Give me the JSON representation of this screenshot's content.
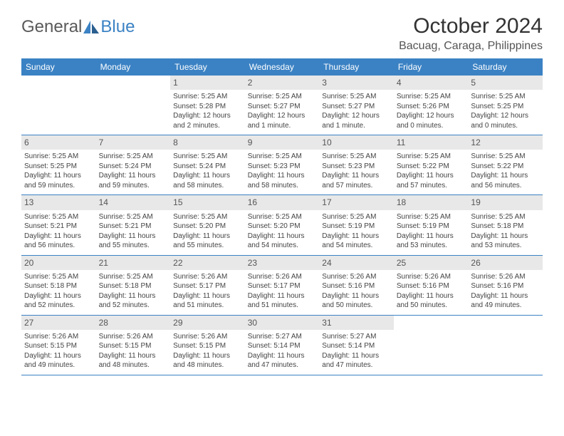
{
  "logo": {
    "part1": "General",
    "part2": "Blue"
  },
  "title": "October 2024",
  "location": "Bacuag, Caraga, Philippines",
  "colors": {
    "header_bg": "#3b82c4",
    "header_fg": "#ffffff",
    "daynum_bg": "#e8e8e8",
    "border": "#3b82c4",
    "text": "#444444",
    "logo_gray": "#5a5a5a",
    "logo_blue": "#3b82c4"
  },
  "dayNames": [
    "Sunday",
    "Monday",
    "Tuesday",
    "Wednesday",
    "Thursday",
    "Friday",
    "Saturday"
  ],
  "startOffset": 2,
  "days": [
    {
      "n": 1,
      "sr": "5:25 AM",
      "ss": "5:28 PM",
      "dl": "12 hours and 2 minutes."
    },
    {
      "n": 2,
      "sr": "5:25 AM",
      "ss": "5:27 PM",
      "dl": "12 hours and 1 minute."
    },
    {
      "n": 3,
      "sr": "5:25 AM",
      "ss": "5:27 PM",
      "dl": "12 hours and 1 minute."
    },
    {
      "n": 4,
      "sr": "5:25 AM",
      "ss": "5:26 PM",
      "dl": "12 hours and 0 minutes."
    },
    {
      "n": 5,
      "sr": "5:25 AM",
      "ss": "5:25 PM",
      "dl": "12 hours and 0 minutes."
    },
    {
      "n": 6,
      "sr": "5:25 AM",
      "ss": "5:25 PM",
      "dl": "11 hours and 59 minutes."
    },
    {
      "n": 7,
      "sr": "5:25 AM",
      "ss": "5:24 PM",
      "dl": "11 hours and 59 minutes."
    },
    {
      "n": 8,
      "sr": "5:25 AM",
      "ss": "5:24 PM",
      "dl": "11 hours and 58 minutes."
    },
    {
      "n": 9,
      "sr": "5:25 AM",
      "ss": "5:23 PM",
      "dl": "11 hours and 58 minutes."
    },
    {
      "n": 10,
      "sr": "5:25 AM",
      "ss": "5:23 PM",
      "dl": "11 hours and 57 minutes."
    },
    {
      "n": 11,
      "sr": "5:25 AM",
      "ss": "5:22 PM",
      "dl": "11 hours and 57 minutes."
    },
    {
      "n": 12,
      "sr": "5:25 AM",
      "ss": "5:22 PM",
      "dl": "11 hours and 56 minutes."
    },
    {
      "n": 13,
      "sr": "5:25 AM",
      "ss": "5:21 PM",
      "dl": "11 hours and 56 minutes."
    },
    {
      "n": 14,
      "sr": "5:25 AM",
      "ss": "5:21 PM",
      "dl": "11 hours and 55 minutes."
    },
    {
      "n": 15,
      "sr": "5:25 AM",
      "ss": "5:20 PM",
      "dl": "11 hours and 55 minutes."
    },
    {
      "n": 16,
      "sr": "5:25 AM",
      "ss": "5:20 PM",
      "dl": "11 hours and 54 minutes."
    },
    {
      "n": 17,
      "sr": "5:25 AM",
      "ss": "5:19 PM",
      "dl": "11 hours and 54 minutes."
    },
    {
      "n": 18,
      "sr": "5:25 AM",
      "ss": "5:19 PM",
      "dl": "11 hours and 53 minutes."
    },
    {
      "n": 19,
      "sr": "5:25 AM",
      "ss": "5:18 PM",
      "dl": "11 hours and 53 minutes."
    },
    {
      "n": 20,
      "sr": "5:25 AM",
      "ss": "5:18 PM",
      "dl": "11 hours and 52 minutes."
    },
    {
      "n": 21,
      "sr": "5:25 AM",
      "ss": "5:18 PM",
      "dl": "11 hours and 52 minutes."
    },
    {
      "n": 22,
      "sr": "5:26 AM",
      "ss": "5:17 PM",
      "dl": "11 hours and 51 minutes."
    },
    {
      "n": 23,
      "sr": "5:26 AM",
      "ss": "5:17 PM",
      "dl": "11 hours and 51 minutes."
    },
    {
      "n": 24,
      "sr": "5:26 AM",
      "ss": "5:16 PM",
      "dl": "11 hours and 50 minutes."
    },
    {
      "n": 25,
      "sr": "5:26 AM",
      "ss": "5:16 PM",
      "dl": "11 hours and 50 minutes."
    },
    {
      "n": 26,
      "sr": "5:26 AM",
      "ss": "5:16 PM",
      "dl": "11 hours and 49 minutes."
    },
    {
      "n": 27,
      "sr": "5:26 AM",
      "ss": "5:15 PM",
      "dl": "11 hours and 49 minutes."
    },
    {
      "n": 28,
      "sr": "5:26 AM",
      "ss": "5:15 PM",
      "dl": "11 hours and 48 minutes."
    },
    {
      "n": 29,
      "sr": "5:26 AM",
      "ss": "5:15 PM",
      "dl": "11 hours and 48 minutes."
    },
    {
      "n": 30,
      "sr": "5:27 AM",
      "ss": "5:14 PM",
      "dl": "11 hours and 47 minutes."
    },
    {
      "n": 31,
      "sr": "5:27 AM",
      "ss": "5:14 PM",
      "dl": "11 hours and 47 minutes."
    }
  ],
  "labels": {
    "sunrise": "Sunrise:",
    "sunset": "Sunset:",
    "daylight": "Daylight:"
  }
}
